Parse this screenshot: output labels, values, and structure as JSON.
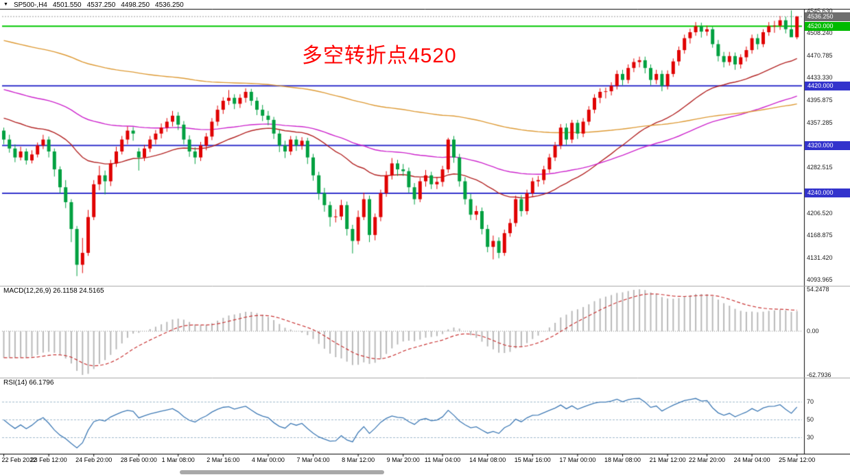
{
  "window": {
    "collapse_icon": "▼",
    "symbol": "SP500-,H4",
    "open": "4501.550",
    "high": "4537.250",
    "low": "4498.250",
    "close": "4536.250"
  },
  "annotation": {
    "text": "多空转折点4520",
    "color": "#ff0000"
  },
  "colors": {
    "bull": "#e00000",
    "bear": "#00a040",
    "frame": "#000000",
    "divider": "#a6a6a6",
    "bid_line": "#999999",
    "zero_line": "#888888",
    "level_line": "#9eb8cc",
    "scrollbar": "#a8a8a8"
  },
  "chart_data": {
    "type": "candlestick",
    "symbol": "SP500-",
    "timeframe": "H4",
    "last_price": 4536.25,
    "x_labels": [
      "22 Feb 2022",
      "23 Feb 12:00",
      "24 Feb 20:00",
      "28 Feb 00:00",
      "1 Mar 08:00",
      "2 Mar 16:00",
      "4 Mar 00:00",
      "7 Mar 04:00",
      "8 Mar 12:00",
      "9 Mar 20:00",
      "11 Mar 04:00",
      "14 Mar 08:00",
      "15 Mar 16:00",
      "17 Mar 00:00",
      "18 Mar 08:00",
      "21 Mar 12:00",
      "22 Mar 20:00",
      "24 Mar 04:00",
      "25 Mar 12:00"
    ],
    "price_axis_labels": [
      {
        "text": "4545.630",
        "value": 4545.63
      },
      {
        "text": "4508.240",
        "value": 4508.24
      },
      {
        "text": "4470.785",
        "value": 4470.785
      },
      {
        "text": "4433.330",
        "value": 4433.33
      },
      {
        "text": "4395.875",
        "value": 4395.875
      },
      {
        "text": "4357.285",
        "value": 4357.285
      },
      {
        "text": "4282.515",
        "value": 4282.515
      },
      {
        "text": "4206.520",
        "value": 4206.52
      },
      {
        "text": "4168.875",
        "value": 4168.875
      },
      {
        "text": "4131.420",
        "value": 4131.42
      },
      {
        "text": "4093.965",
        "value": 4093.965
      }
    ],
    "price_tags": [
      {
        "text": "4536.250",
        "value": 4536.25,
        "bg": "#6e6e6e",
        "role": "last-price"
      },
      {
        "text": "4520.000",
        "value": 4520,
        "bg": "#00ba00",
        "role": "horizontal-line"
      },
      {
        "text": "4420.000",
        "value": 4420,
        "bg": "#3333cc",
        "role": "horizontal-line"
      },
      {
        "text": "4320.000",
        "value": 4320,
        "bg": "#3333cc",
        "role": "horizontal-line"
      },
      {
        "text": "4240.000",
        "value": 4240,
        "bg": "#3333cc",
        "role": "horizontal-line"
      }
    ],
    "hlines": [
      {
        "value": 4520,
        "color": "#00c800",
        "width": 2
      },
      {
        "value": 4420,
        "color": "#3333cc",
        "width": 2
      },
      {
        "value": 4320,
        "color": "#3333cc",
        "width": 2
      },
      {
        "value": 4240,
        "color": "#3333cc",
        "width": 2
      }
    ],
    "moving_averages": [
      {
        "name": "ma-fast",
        "period": 34,
        "seed": 4368,
        "color": "#b22222"
      },
      {
        "name": "ma-mid",
        "period": 80,
        "seed": 4416,
        "color": "#cc22cc"
      },
      {
        "name": "ma-slow",
        "period": 170,
        "seed": 4498,
        "color": "#dd9933"
      }
    ],
    "macd": {
      "label": "MACD(12,26,9) 26.1158 24.5165",
      "fast": 12,
      "slow": 26,
      "signal": 9,
      "seed_fast": 4345,
      "seed_slow": 4380,
      "axis_labels": [
        "54.2478",
        "0.00",
        "-62.7936"
      ],
      "bar_color": "#b8b8b8",
      "signal_color": "#c83232"
    },
    "rsi": {
      "label": "RSI(14) 66.1796",
      "period": 14,
      "levels": [
        70,
        50,
        30
      ],
      "range": [
        15,
        92
      ],
      "line_color": "#3c78b4"
    },
    "candles": [
      [
        4345,
        4350,
        4322,
        4330
      ],
      [
        4330,
        4338,
        4308,
        4315
      ],
      [
        4315,
        4322,
        4292,
        4300
      ],
      [
        4300,
        4318,
        4295,
        4310
      ],
      [
        4310,
        4315,
        4288,
        4295
      ],
      [
        4295,
        4312,
        4290,
        4305
      ],
      [
        4305,
        4325,
        4300,
        4320
      ],
      [
        4320,
        4338,
        4314,
        4330
      ],
      [
        4330,
        4335,
        4300,
        4310
      ],
      [
        4310,
        4315,
        4268,
        4280
      ],
      [
        4280,
        4285,
        4240,
        4250
      ],
      [
        4250,
        4262,
        4215,
        4225
      ],
      [
        4225,
        4230,
        4158,
        4180
      ],
      [
        4180,
        4185,
        4101,
        4120
      ],
      [
        4120,
        4165,
        4106,
        4140
      ],
      [
        4140,
        4212,
        4135,
        4200
      ],
      [
        4200,
        4262,
        4195,
        4255
      ],
      [
        4255,
        4286,
        4245,
        4270
      ],
      [
        4270,
        4278,
        4238,
        4260
      ],
      [
        4260,
        4296,
        4252,
        4290
      ],
      [
        4290,
        4318,
        4284,
        4310
      ],
      [
        4310,
        4336,
        4305,
        4330
      ],
      [
        4330,
        4352,
        4322,
        4345
      ],
      [
        4345,
        4351,
        4328,
        4340
      ],
      [
        4310,
        4316,
        4278,
        4300
      ],
      [
        4300,
        4321,
        4294,
        4315
      ],
      [
        4315,
        4336,
        4309,
        4330
      ],
      [
        4330,
        4346,
        4322,
        4340
      ],
      [
        4340,
        4357,
        4332,
        4350
      ],
      [
        4350,
        4366,
        4343,
        4360
      ],
      [
        4360,
        4378,
        4352,
        4370
      ],
      [
        4370,
        4376,
        4346,
        4355
      ],
      [
        4355,
        4361,
        4322,
        4330
      ],
      [
        4330,
        4337,
        4301,
        4310
      ],
      [
        4310,
        4317,
        4289,
        4300
      ],
      [
        4300,
        4326,
        4294,
        4320
      ],
      [
        4320,
        4341,
        4312,
        4335
      ],
      [
        4335,
        4366,
        4329,
        4360
      ],
      [
        4360,
        4387,
        4353,
        4380
      ],
      [
        4380,
        4401,
        4373,
        4395
      ],
      [
        4395,
        4413,
        4388,
        4400
      ],
      [
        4400,
        4406,
        4381,
        4390
      ],
      [
        4390,
        4406,
        4383,
        4400
      ],
      [
        4400,
        4416,
        4392,
        4410
      ],
      [
        4410,
        4415,
        4387,
        4395
      ],
      [
        4395,
        4401,
        4371,
        4380
      ],
      [
        4380,
        4388,
        4361,
        4370
      ],
      [
        4370,
        4378,
        4354,
        4363
      ],
      [
        4363,
        4368,
        4331,
        4340
      ],
      [
        4340,
        4346,
        4309,
        4320
      ],
      [
        4320,
        4328,
        4299,
        4310
      ],
      [
        4310,
        4336,
        4304,
        4330
      ],
      [
        4330,
        4336,
        4311,
        4320
      ],
      [
        4320,
        4334,
        4313,
        4328
      ],
      [
        4328,
        4333,
        4289,
        4300
      ],
      [
        4300,
        4306,
        4261,
        4270
      ],
      [
        4270,
        4276,
        4229,
        4240
      ],
      [
        4240,
        4249,
        4209,
        4220
      ],
      [
        4220,
        4226,
        4184,
        4200
      ],
      [
        4200,
        4213,
        4191,
        4201
      ],
      [
        4201,
        4229,
        4195,
        4220
      ],
      [
        4220,
        4226,
        4169,
        4180
      ],
      [
        4180,
        4187,
        4139,
        4160
      ],
      [
        4160,
        4211,
        4154,
        4200
      ],
      [
        4200,
        4241,
        4195,
        4230
      ],
      [
        4230,
        4236,
        4158,
        4170
      ],
      [
        4170,
        4206,
        4161,
        4200
      ],
      [
        4200,
        4246,
        4193,
        4240
      ],
      [
        4240,
        4277,
        4234,
        4270
      ],
      [
        4270,
        4299,
        4263,
        4290
      ],
      [
        4290,
        4296,
        4269,
        4280
      ],
      [
        4280,
        4289,
        4269,
        4277
      ],
      [
        4277,
        4283,
        4241,
        4250
      ],
      [
        4250,
        4257,
        4221,
        4230
      ],
      [
        4230,
        4266,
        4225,
        4260
      ],
      [
        4260,
        4279,
        4251,
        4270
      ],
      [
        4270,
        4276,
        4247,
        4255
      ],
      [
        4255,
        4267,
        4247,
        4259
      ],
      [
        4259,
        4286,
        4251,
        4280
      ],
      [
        4280,
        4333,
        4274,
        4330
      ],
      [
        4330,
        4336,
        4291,
        4300
      ],
      [
        4300,
        4306,
        4251,
        4260
      ],
      [
        4260,
        4267,
        4221,
        4230
      ],
      [
        4230,
        4239,
        4195,
        4204
      ],
      [
        4204,
        4219,
        4195,
        4210
      ],
      [
        4210,
        4216,
        4171,
        4180
      ],
      [
        4180,
        4187,
        4141,
        4150
      ],
      [
        4150,
        4169,
        4129,
        4160
      ],
      [
        4160,
        4166,
        4131,
        4140
      ],
      [
        4140,
        4179,
        4135,
        4173
      ],
      [
        4173,
        4197,
        4167,
        4190
      ],
      [
        4190,
        4236,
        4184,
        4230
      ],
      [
        4230,
        4237,
        4201,
        4210
      ],
      [
        4210,
        4246,
        4204,
        4240
      ],
      [
        4240,
        4266,
        4234,
        4260
      ],
      [
        4260,
        4269,
        4251,
        4262
      ],
      [
        4262,
        4286,
        4255,
        4280
      ],
      [
        4280,
        4306,
        4274,
        4300
      ],
      [
        4300,
        4326,
        4294,
        4320
      ],
      [
        4320,
        4356,
        4314,
        4350
      ],
      [
        4350,
        4357,
        4321,
        4330
      ],
      [
        4330,
        4363,
        4324,
        4358
      ],
      [
        4358,
        4363,
        4331,
        4340
      ],
      [
        4340,
        4366,
        4334,
        4360
      ],
      [
        4360,
        4386,
        4354,
        4380
      ],
      [
        4380,
        4406,
        4374,
        4400
      ],
      [
        4400,
        4416,
        4391,
        4410
      ],
      [
        4410,
        4417,
        4399,
        4411
      ],
      [
        4411,
        4426,
        4404,
        4420
      ],
      [
        4420,
        4446,
        4414,
        4440
      ],
      [
        4440,
        4447,
        4421,
        4430
      ],
      [
        4430,
        4456,
        4424,
        4450
      ],
      [
        4450,
        4466,
        4443,
        4460
      ],
      [
        4460,
        4469,
        4451,
        4463
      ],
      [
        4463,
        4469,
        4441,
        4450
      ],
      [
        4450,
        4456,
        4421,
        4430
      ],
      [
        4430,
        4447,
        4423,
        4440
      ],
      [
        4440,
        4446,
        4411,
        4420
      ],
      [
        4420,
        4446,
        4414,
        4440
      ],
      [
        4440,
        4466,
        4435,
        4461
      ],
      [
        4461,
        4486,
        4454,
        4480
      ],
      [
        4480,
        4506,
        4474,
        4500
      ],
      [
        4500,
        4516,
        4491,
        4510
      ],
      [
        4510,
        4527,
        4504,
        4520
      ],
      [
        4520,
        4526,
        4501,
        4511
      ],
      [
        4511,
        4521,
        4504,
        4515
      ],
      [
        4515,
        4519,
        4484,
        4490
      ],
      [
        4490,
        4497,
        4461,
        4470
      ],
      [
        4470,
        4477,
        4451,
        4460
      ],
      [
        4460,
        4477,
        4454,
        4470
      ],
      [
        4470,
        4476,
        4447,
        4456
      ],
      [
        4456,
        4473,
        4449,
        4468
      ],
      [
        4468,
        4486,
        4461,
        4480
      ],
      [
        4480,
        4506,
        4474,
        4500
      ],
      [
        4500,
        4507,
        4481,
        4490
      ],
      [
        4490,
        4515,
        4485,
        4510
      ],
      [
        4510,
        4527,
        4504,
        4520
      ],
      [
        4520,
        4529,
        4509,
        4521
      ],
      [
        4521,
        4537,
        4514,
        4530
      ],
      [
        4530,
        4536,
        4508,
        4515
      ],
      [
        4515,
        4546.5,
        4509,
        4501.55
      ],
      [
        4501.55,
        4537.25,
        4498.25,
        4536.25
      ]
    ]
  }
}
